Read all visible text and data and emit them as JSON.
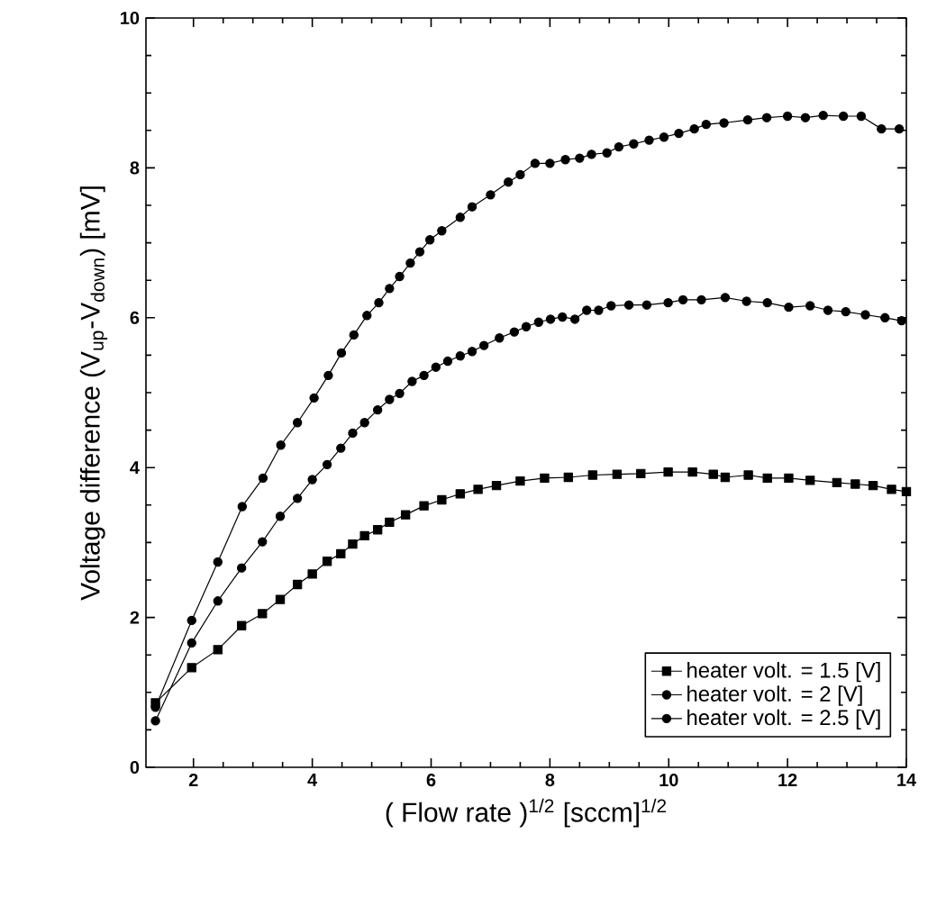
{
  "chart_data": {
    "type": "line",
    "xlabel": "( Flow rate )$^{1/2}$  [sccm]$^{1/2}$",
    "ylabel": "Voltage difference (V$_{up}$-V$_{down}$) [mV]",
    "xlim": [
      1.2,
      14
    ],
    "ylim": [
      0,
      10
    ],
    "xticks": [
      2,
      4,
      6,
      8,
      10,
      12,
      14
    ],
    "yticks": [
      0,
      2,
      4,
      6,
      8,
      10
    ],
    "legend": "bottom right",
    "grid": false,
    "series": [
      {
        "name": "heater volt. = 1.5 [V]",
        "color": "#000000",
        "marker": "square",
        "x": [
          1.36,
          1.97,
          2.41,
          2.81,
          3.16,
          3.46,
          3.75,
          4.0,
          4.25,
          4.48,
          4.68,
          4.88,
          5.1,
          5.3,
          5.57,
          5.88,
          6.18,
          6.49,
          6.79,
          7.1,
          7.5,
          7.91,
          8.31,
          8.72,
          9.13,
          9.53,
          9.99,
          10.4,
          10.75,
          10.95,
          11.34,
          11.66,
          12.02,
          12.38,
          12.83,
          13.14,
          13.44,
          13.75,
          14.0
        ],
        "values": [
          0.86,
          1.33,
          1.57,
          1.89,
          2.05,
          2.24,
          2.44,
          2.58,
          2.75,
          2.85,
          2.98,
          3.09,
          3.17,
          3.27,
          3.37,
          3.49,
          3.57,
          3.65,
          3.71,
          3.76,
          3.82,
          3.86,
          3.87,
          3.9,
          3.91,
          3.92,
          3.94,
          3.94,
          3.91,
          3.87,
          3.9,
          3.86,
          3.86,
          3.83,
          3.8,
          3.78,
          3.76,
          3.71,
          3.68
        ]
      },
      {
        "name": "heater volt. = 2 [V]",
        "color": "#000000",
        "marker": "circle",
        "x": [
          1.36,
          1.97,
          2.41,
          2.81,
          3.16,
          3.46,
          3.75,
          4.0,
          4.25,
          4.48,
          4.68,
          4.88,
          5.1,
          5.3,
          5.47,
          5.68,
          5.88,
          6.08,
          6.28,
          6.49,
          6.69,
          6.89,
          7.15,
          7.4,
          7.6,
          7.81,
          8.01,
          8.21,
          8.42,
          8.62,
          8.82,
          9.03,
          9.33,
          9.63,
          9.99,
          10.24,
          10.55,
          10.95,
          11.31,
          11.66,
          12.02,
          12.38,
          12.68,
          12.98,
          13.31,
          13.64,
          13.92
        ],
        "values": [
          0.62,
          1.66,
          2.22,
          2.66,
          3.01,
          3.35,
          3.59,
          3.84,
          4.04,
          4.26,
          4.46,
          4.6,
          4.77,
          4.91,
          4.99,
          5.15,
          5.23,
          5.34,
          5.42,
          5.49,
          5.55,
          5.63,
          5.73,
          5.81,
          5.88,
          5.94,
          5.98,
          6.01,
          5.98,
          6.1,
          6.1,
          6.16,
          6.17,
          6.17,
          6.2,
          6.24,
          6.24,
          6.27,
          6.22,
          6.2,
          6.14,
          6.16,
          6.1,
          6.08,
          6.04,
          6.0,
          5.96
        ]
      },
      {
        "name": "heater volt. = 2.5 [V]",
        "color": "#000000",
        "marker": "circle",
        "x": [
          1.36,
          1.97,
          2.41,
          2.82,
          3.17,
          3.47,
          3.75,
          4.03,
          4.27,
          4.49,
          4.7,
          4.92,
          5.12,
          5.3,
          5.47,
          5.65,
          5.81,
          5.98,
          6.18,
          6.49,
          6.69,
          7.0,
          7.3,
          7.5,
          7.75,
          8.0,
          8.26,
          8.5,
          8.7,
          8.96,
          9.16,
          9.41,
          9.67,
          9.92,
          10.17,
          10.43,
          10.63,
          10.93,
          11.33,
          11.65,
          12.0,
          12.3,
          12.6,
          12.94,
          13.24,
          13.58,
          13.88
        ],
        "values": [
          0.8,
          1.96,
          2.74,
          3.48,
          3.86,
          4.3,
          4.6,
          4.93,
          5.23,
          5.53,
          5.77,
          6.03,
          6.2,
          6.39,
          6.55,
          6.73,
          6.88,
          7.04,
          7.16,
          7.34,
          7.48,
          7.64,
          7.81,
          7.91,
          8.06,
          8.06,
          8.11,
          8.13,
          8.18,
          8.2,
          8.28,
          8.32,
          8.37,
          8.41,
          8.46,
          8.52,
          8.58,
          8.6,
          8.64,
          8.67,
          8.69,
          8.67,
          8.7,
          8.69,
          8.69,
          8.52,
          8.52
        ]
      }
    ]
  }
}
